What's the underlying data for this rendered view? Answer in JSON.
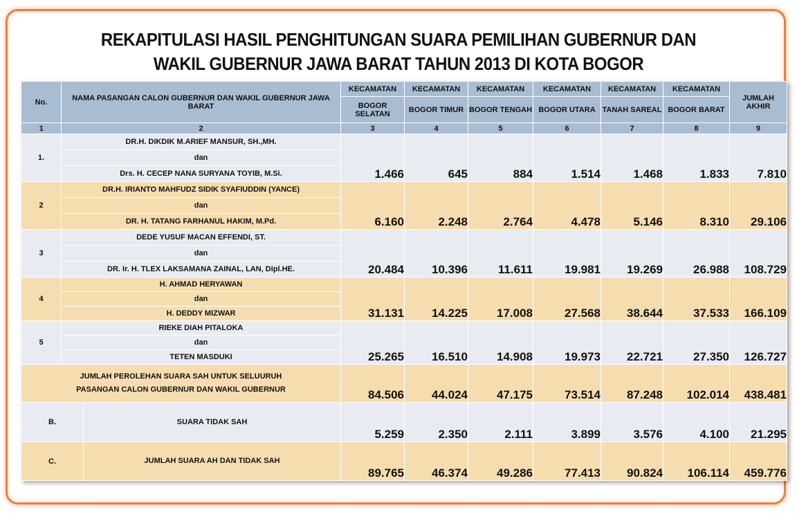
{
  "title": {
    "line1": "REKAPITULASI HASIL PENGHITUNGAN SUARA PEMILIHAN GUBERNUR DAN",
    "line2": "WAKIL GUBERNUR JAWA BARAT TAHUN 2013 DI KOTA BOGOR"
  },
  "header": {
    "no": "No.",
    "nama": "NAMA PASANGAN CALON GUBERNUR DAN WAKIL GUBERNUR JAWA BARAT",
    "kecamatan": "KECAMATAN",
    "districts": [
      "BOGOR SELATAN",
      "BOGOR TIMUR",
      "BOGOR TENGAH",
      "BOGOR UTARA",
      "TANAH SAREAL",
      "BOGOR BARAT"
    ],
    "jumlah": "JUMLAH AKHIR",
    "colnums": [
      "1",
      "2",
      "3",
      "4",
      "5",
      "6",
      "7",
      "8",
      "9"
    ]
  },
  "rows": [
    {
      "no": "1.",
      "gub": "DR.H. DIKDIK M.ARIEF MANSUR, SH.,MH.",
      "dan": "dan",
      "wagub": "Drs. H. CECEP NANA SURYANA TOYIB, M.Si.",
      "values": [
        "1.466",
        "645",
        "884",
        "1.514",
        "1.468",
        "1.833",
        "7.810"
      ]
    },
    {
      "no": "2",
      "gub": "DR.H. IRIANTO MAHFUDZ SIDIK SYAFIUDDIN (YANCE)",
      "dan": "dan",
      "wagub": "DR. H. TATANG FARHANUL HAKIM, M.Pd.",
      "values": [
        "6.160",
        "2.248",
        "2.764",
        "4.478",
        "5.146",
        "8.310",
        "29.106"
      ]
    },
    {
      "no": "3",
      "gub": "DEDE YUSUF MACAN EFFENDI, ST.",
      "dan": "dan",
      "wagub": "DR. Ir. H. TLEX LAKSAMANA ZAINAL, LAN, Dipl.HE.",
      "values": [
        "20.484",
        "10.396",
        "11.611",
        "19.981",
        "19.269",
        "26.988",
        "108.729"
      ]
    },
    {
      "no": "4",
      "gub": "H. AHMAD HERYAWAN",
      "dan": "dan",
      "wagub": "H. DEDDY MIZWAR",
      "values": [
        "31.131",
        "14.225",
        "17.008",
        "27.568",
        "38.644",
        "37.533",
        "166.109"
      ]
    },
    {
      "no": "5",
      "gub": "RIEKE DIAH PITALOKA",
      "dan": "dan",
      "wagub": "TETEN MASDUKI",
      "values": [
        "25.265",
        "16.510",
        "14.908",
        "19.973",
        "22.721",
        "27.350",
        "126.727"
      ]
    }
  ],
  "summary": {
    "sah": {
      "label_line1": "JUMLAH PEROLEHAN SUARA SAH UNTUK SELUURUH",
      "label_line2": "PASANGAN CALON GUBERNUR DAN WAKIL GUBERNUR",
      "values": [
        "84.506",
        "44.024",
        "47.175",
        "73.514",
        "87.248",
        "102.014",
        "438.481"
      ]
    },
    "tidak_sah": {
      "no": "B.",
      "label": "SUARA TIDAK SAH",
      "values": [
        "5.259",
        "2.350",
        "2.111",
        "3.899",
        "3.576",
        "4.100",
        "21.295"
      ]
    },
    "total": {
      "no": "C.",
      "label": "JUMLAH SUARA AH DAN TIDAK SAH",
      "values": [
        "89.765",
        "46.374",
        "49.286",
        "77.413",
        "90.824",
        "106.114",
        "459.776"
      ]
    }
  },
  "colors": {
    "border": "#f07d3c",
    "header": "#a9bdd2",
    "light_row": "#e8ecf2",
    "sand_row": "#f6ddb0"
  }
}
